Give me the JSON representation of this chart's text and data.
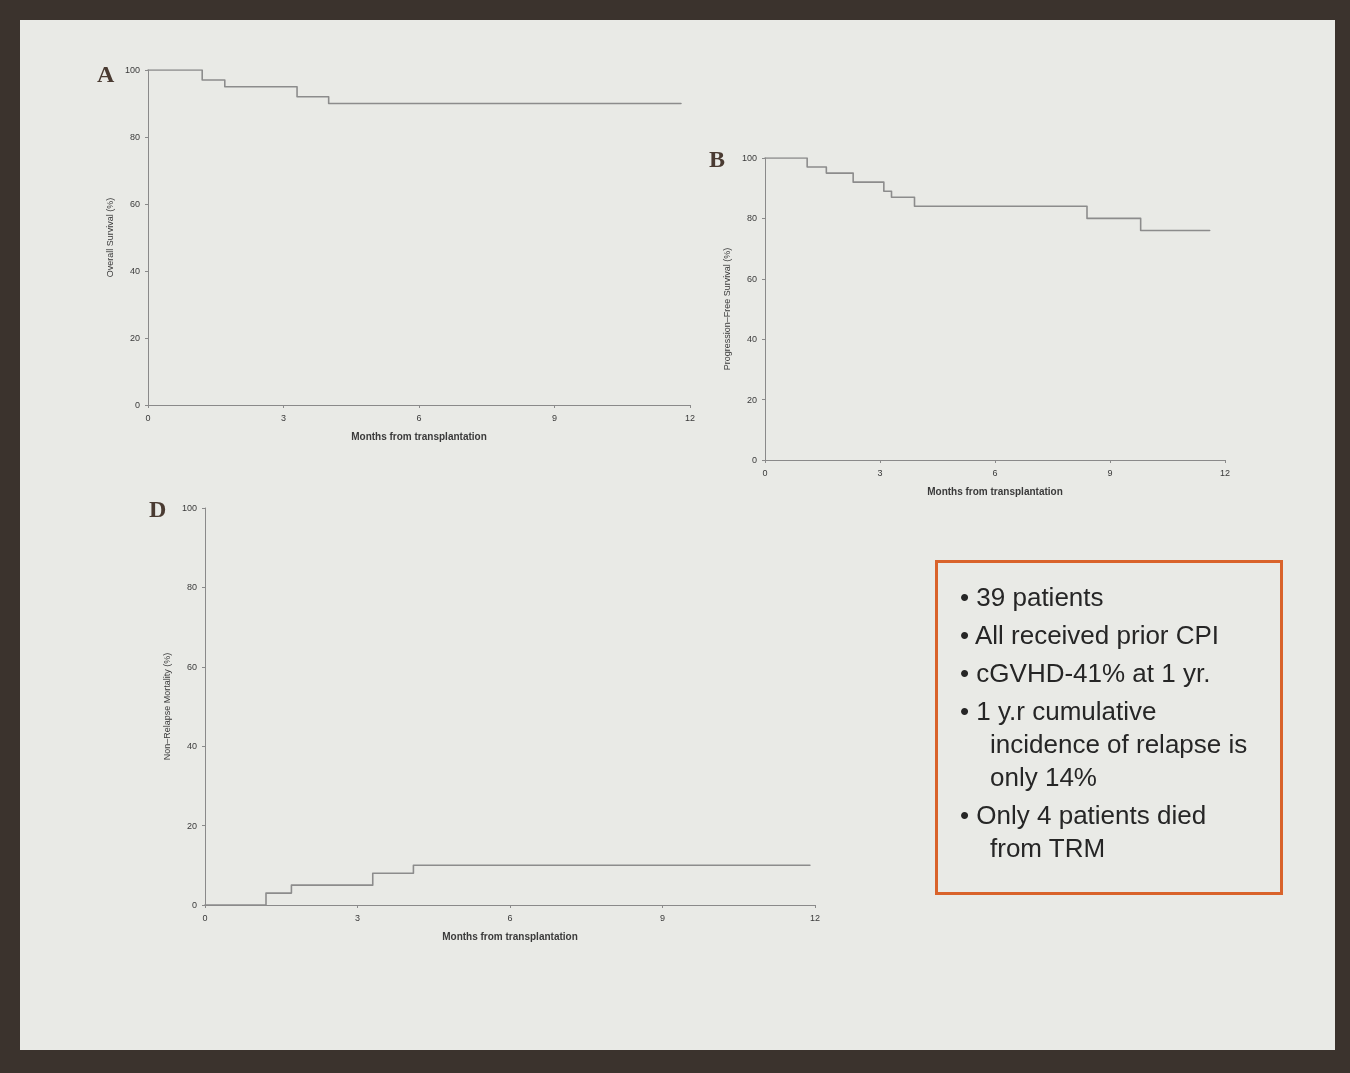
{
  "chart_data": [
    {
      "type": "step",
      "title": "A",
      "xlabel": "Months from transplantation",
      "ylabel": "Overall Survival (%)",
      "xlim": [
        0,
        12
      ],
      "ylim": [
        0,
        100
      ],
      "xticks": [
        0,
        3,
        6,
        9,
        12
      ],
      "yticks": [
        0,
        20,
        40,
        60,
        80,
        100
      ],
      "color": "#8c8c8c",
      "x": [
        0,
        1.2,
        1.7,
        3.3,
        4.0,
        11.8
      ],
      "values": [
        100,
        97,
        95,
        92,
        90,
        90
      ]
    },
    {
      "type": "step",
      "title": "B",
      "xlabel": "Months from transplantation",
      "ylabel": "Progression–Free Survival (%)",
      "xlim": [
        0,
        12
      ],
      "ylim": [
        0,
        100
      ],
      "xticks": [
        0,
        3,
        6,
        9,
        12
      ],
      "yticks": [
        0,
        20,
        40,
        60,
        80,
        100
      ],
      "color": "#8c8c8c",
      "x": [
        0,
        1.1,
        1.6,
        2.3,
        3.1,
        3.3,
        3.9,
        8.4,
        9.8,
        11.6
      ],
      "values": [
        100,
        97,
        95,
        92,
        89,
        87,
        84,
        80,
        76,
        76
      ]
    },
    {
      "type": "step",
      "title": "D",
      "xlabel": "Months from transplantation",
      "ylabel": "Non–Relapse Mortality (%)",
      "xlim": [
        0,
        12
      ],
      "ylim": [
        0,
        100
      ],
      "xticks": [
        0,
        3,
        6,
        9,
        12
      ],
      "yticks": [
        0,
        20,
        40,
        60,
        80,
        100
      ],
      "color": "#8c8c8c",
      "x": [
        0,
        1.2,
        1.7,
        3.3,
        4.1,
        11.9
      ],
      "values": [
        0,
        3,
        5,
        8,
        10,
        10
      ]
    },
    {
      "type": "other",
      "annotations": [
        "• 39 patients",
        "• All received prior CPI",
        "• cGVHD-41% at 1 yr.",
        "• 1 y.r cumulative incidence of relapse is only 14%",
        "• Only 4 patients died from TRM"
      ]
    }
  ]
}
